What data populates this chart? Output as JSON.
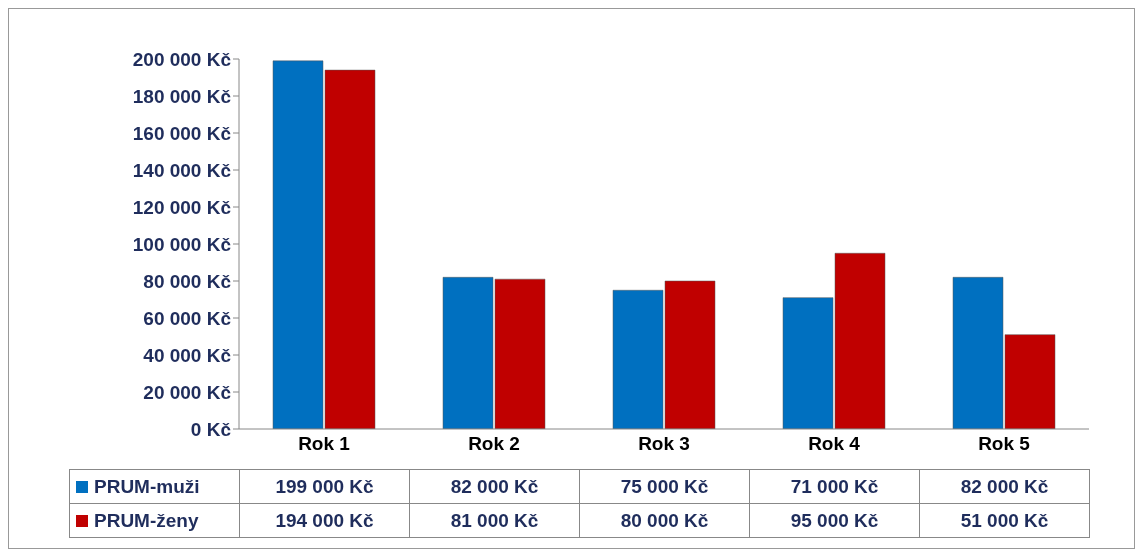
{
  "chart_data": {
    "type": "bar",
    "categories": [
      "Rok 1",
      "Rok 2",
      "Rok 3",
      "Rok 4",
      "Rok 5"
    ],
    "series": [
      {
        "name": "PRUM-muži",
        "color": "#0070c0",
        "values": [
          199000,
          82000,
          75000,
          71000,
          82000
        ],
        "value_labels": [
          "199 000 Kč",
          "82 000 Kč",
          "75 000 Kč",
          "71 000 Kč",
          "82 000 Kč"
        ]
      },
      {
        "name": "PRUM-ženy",
        "color": "#c00000",
        "values": [
          194000,
          81000,
          80000,
          95000,
          51000
        ],
        "value_labels": [
          "194 000 Kč",
          "81 000 Kč",
          "80 000 Kč",
          "95 000 Kč",
          "51 000 Kč"
        ]
      }
    ],
    "ylim": [
      0,
      200000
    ],
    "yticks": [
      {
        "value": 0,
        "label": "0 Kč"
      },
      {
        "value": 20000,
        "label": "20 000 Kč"
      },
      {
        "value": 40000,
        "label": "40 000 Kč"
      },
      {
        "value": 60000,
        "label": "60 000 Kč"
      },
      {
        "value": 80000,
        "label": "80 000 Kč"
      },
      {
        "value": 100000,
        "label": "100 000 Kč"
      },
      {
        "value": 120000,
        "label": "120 000 Kč"
      },
      {
        "value": 140000,
        "label": "140 000 Kč"
      },
      {
        "value": 160000,
        "label": "160 000 Kč"
      },
      {
        "value": 180000,
        "label": "180 000 Kč"
      },
      {
        "value": 200000,
        "label": "200 000 Kč"
      }
    ],
    "legend": "bottom left"
  }
}
